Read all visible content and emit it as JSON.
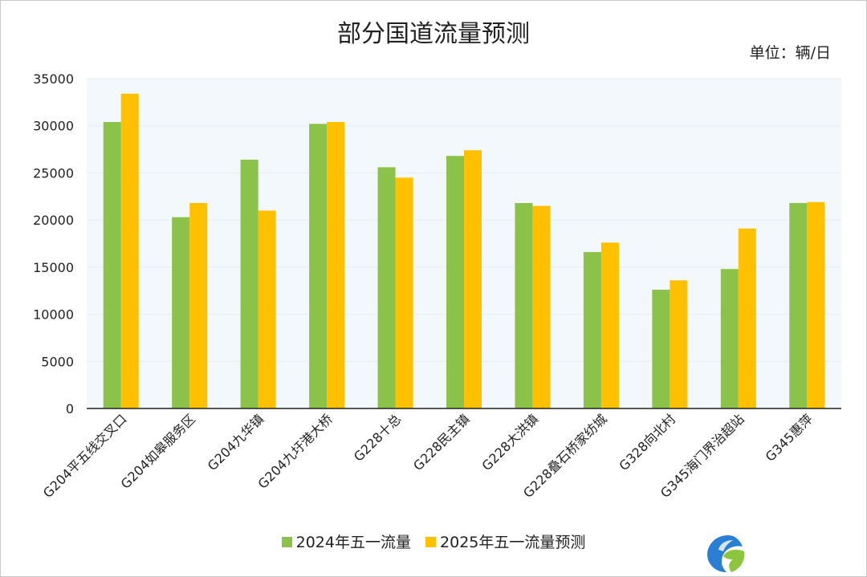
{
  "chart_data": {
    "type": "bar",
    "title": "部分国道流量预测",
    "unit_label": "单位：辆/日",
    "categories": [
      "G204平五线交叉口",
      "G204如皋服务区",
      "G204九华镇",
      "G204九圩港大桥",
      "G228十总",
      "G228民主镇",
      "G228大洪镇",
      "G228叠石桥家纺城",
      "G328向北村",
      "G345海门界治超站",
      "G345惠萍"
    ],
    "series": [
      {
        "name": "2024年五一流量",
        "color": "#8bc34a",
        "values": [
          30400,
          20300,
          26400,
          30200,
          25600,
          26800,
          21800,
          16600,
          12600,
          14800,
          21800
        ]
      },
      {
        "name": "2025年五一流量预测",
        "color": "#ffc000",
        "values": [
          33400,
          21800,
          21000,
          30400,
          24500,
          27400,
          21500,
          17600,
          13600,
          19100,
          21900
        ]
      }
    ],
    "ylim": [
      0,
      35000
    ],
    "yticks": [
      0,
      5000,
      10000,
      15000,
      20000,
      25000,
      30000,
      35000
    ],
    "grid": true,
    "legend_position": "bottom"
  }
}
